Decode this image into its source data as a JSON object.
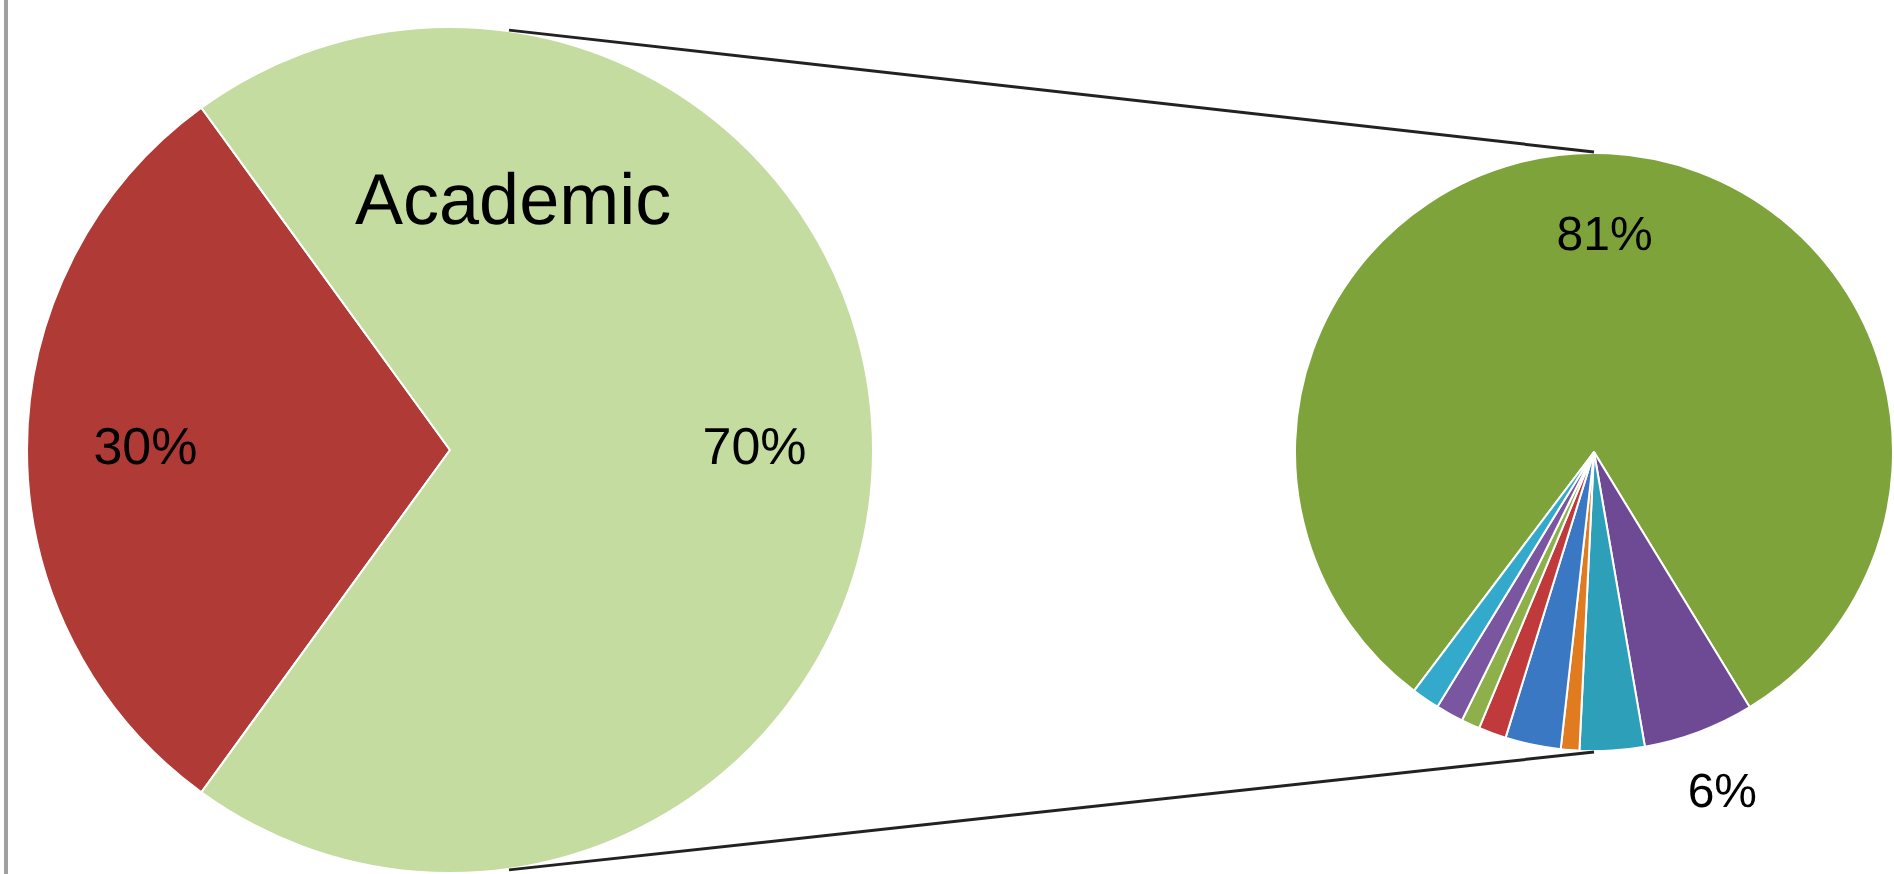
{
  "chart_data": [
    {
      "type": "pie",
      "categories": [
        null,
        "Academic"
      ],
      "values": [
        30,
        70
      ],
      "colors": [
        "#b03a36",
        "#c4dca0"
      ],
      "value_labels": [
        "30%",
        "70%"
      ]
    },
    {
      "type": "pie",
      "categories": [
        null,
        null,
        null,
        null,
        null,
        null,
        null,
        null,
        null
      ],
      "values": [
        81,
        6,
        3.5,
        1,
        3,
        1.5,
        1,
        1.5,
        1.5
      ],
      "colors": [
        "#7ea33b",
        "#6f4a94",
        "#2e9fb8",
        "#e07b20",
        "#3a78c4",
        "#c0393b",
        "#8db04a",
        "#7a55a0",
        "#33aacc"
      ],
      "value_labels": [
        "81%",
        "6%",
        null,
        null,
        null,
        null,
        null,
        null,
        null
      ]
    }
  ]
}
